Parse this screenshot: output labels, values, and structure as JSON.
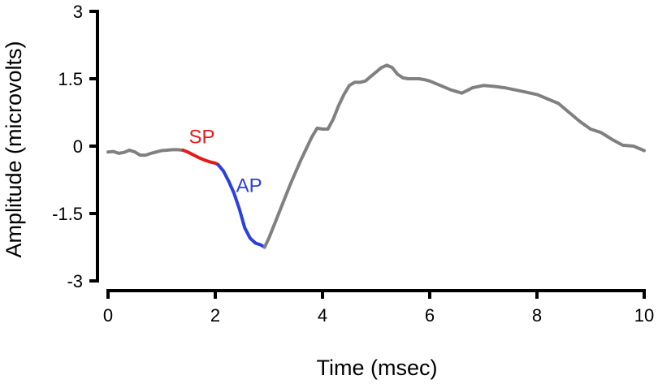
{
  "chart_data": {
    "type": "line",
    "xlabel": "Time (msec)",
    "ylabel": "Amplitude (microvolts)",
    "xlim": [
      0,
      10
    ],
    "ylim": [
      -3,
      3
    ],
    "x_ticks": [
      0,
      2,
      4,
      6,
      8,
      10
    ],
    "y_ticks": [
      3,
      1.5,
      0,
      -1.5,
      -3
    ],
    "y_tick_labels": [
      "3",
      "1.5",
      "0",
      "-1.5",
      "-3"
    ],
    "grid": false,
    "series": [
      {
        "color": "#808080",
        "x": [
          0,
          0.1,
          0.2,
          0.3,
          0.4,
          0.5,
          0.6,
          0.7,
          0.8,
          0.9,
          1.0,
          1.1,
          1.2,
          1.3,
          1.4
        ],
        "y": [
          -0.13,
          -0.12,
          -0.16,
          -0.14,
          -0.09,
          -0.13,
          -0.2,
          -0.2,
          -0.16,
          -0.13,
          -0.1,
          -0.09,
          -0.08,
          -0.08,
          -0.09
        ]
      },
      {
        "color": "#e31b1b",
        "x": [
          1.4,
          1.5,
          1.6,
          1.7,
          1.8,
          1.9,
          2.0,
          2.05
        ],
        "y": [
          -0.09,
          -0.14,
          -0.2,
          -0.26,
          -0.31,
          -0.35,
          -0.38,
          -0.41
        ]
      },
      {
        "color": "#2c40e0",
        "x": [
          2.05,
          2.15,
          2.25,
          2.35,
          2.45,
          2.55,
          2.65,
          2.75,
          2.85,
          2.92
        ],
        "y": [
          -0.41,
          -0.55,
          -0.78,
          -1.05,
          -1.4,
          -1.82,
          -2.05,
          -2.16,
          -2.2,
          -2.25
        ]
      },
      {
        "color": "#808080",
        "x": [
          2.92,
          3.0,
          3.2,
          3.4,
          3.6,
          3.8,
          3.9,
          4.0,
          4.1,
          4.2,
          4.3,
          4.4,
          4.5,
          4.6,
          4.7,
          4.8,
          4.9,
          5.0,
          5.1,
          5.2,
          5.3,
          5.4,
          5.5,
          5.6,
          5.7,
          5.8,
          5.9,
          6.0,
          6.2,
          6.4,
          6.6,
          6.8,
          7.0,
          7.2,
          7.4,
          7.6,
          7.8,
          8.0,
          8.2,
          8.4,
          8.6,
          8.8,
          9.0,
          9.2,
          9.4,
          9.6,
          9.8,
          10.0
        ],
        "y": [
          -2.25,
          -2.05,
          -1.45,
          -0.85,
          -0.3,
          0.2,
          0.4,
          0.38,
          0.38,
          0.6,
          0.9,
          1.15,
          1.35,
          1.42,
          1.42,
          1.45,
          1.55,
          1.65,
          1.75,
          1.8,
          1.75,
          1.6,
          1.52,
          1.5,
          1.5,
          1.5,
          1.48,
          1.45,
          1.35,
          1.25,
          1.18,
          1.3,
          1.35,
          1.33,
          1.3,
          1.25,
          1.2,
          1.15,
          1.05,
          0.95,
          0.75,
          0.55,
          0.38,
          0.3,
          0.15,
          0.02,
          0.0,
          -0.1
        ]
      }
    ],
    "annotations": [
      {
        "text": "SP",
        "color": "#e31b1b",
        "x": 1.75,
        "y": 0.06
      },
      {
        "text": "AP",
        "color": "#2c40e0",
        "x": 2.63,
        "y": -1.02
      }
    ]
  }
}
